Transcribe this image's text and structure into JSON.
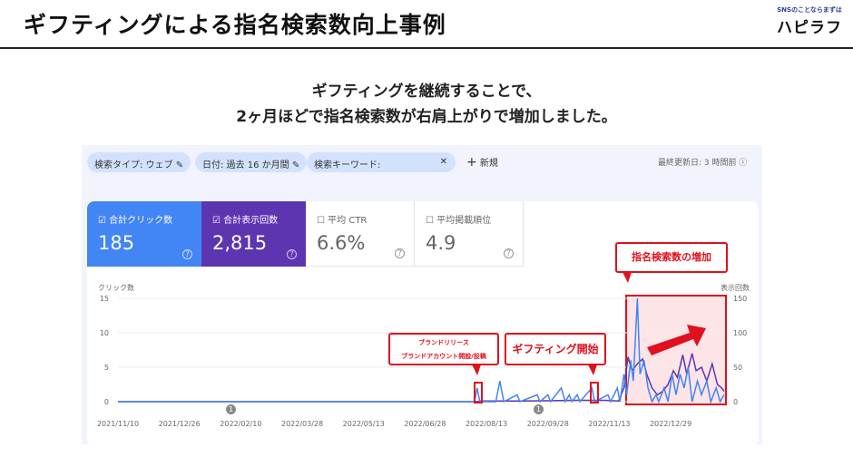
{
  "header": {
    "title": "ギフティングによる指名検索数向上事例",
    "logo_tagline": "SNSのことならまずは",
    "logo_name": "ハピラフ"
  },
  "subtitle": {
    "line1": "ギフティングを継続することで、",
    "line2": "2ヶ月ほどで指名検索数が右肩上がりで増加しました。"
  },
  "filters": {
    "chips": [
      "検索タイプ: ウェブ",
      "日付: 過去 16 か月間",
      "検索キーワード:"
    ],
    "new_label": "新規",
    "updated": "最終更新日: 3 時間前"
  },
  "metrics": [
    {
      "label": "合計クリック数",
      "value": "185",
      "checked": true,
      "color": "#4285f4"
    },
    {
      "label": "合計表示回数",
      "value": "2,815",
      "checked": true,
      "color": "#5e35b1"
    },
    {
      "label": "平均 CTR",
      "value": "6.6%",
      "checked": false
    },
    {
      "label": "平均掲載順位",
      "value": "4.9",
      "checked": false
    }
  ],
  "annotations": {
    "brand": [
      "ブランドリリース",
      "ブランドアカウント開設/投稿"
    ],
    "gifting": "ギフティング開始",
    "increase": "指名検索数の増加",
    "markers": [
      "1",
      "1"
    ]
  },
  "chart_data": {
    "type": "line",
    "left_axis_label": "クリック数",
    "right_axis_label": "表示回数",
    "left_ticks": [
      "15",
      "10",
      "5",
      "0"
    ],
    "right_ticks": [
      "150",
      "100",
      "50",
      "0"
    ],
    "ylim_left": [
      0,
      15
    ],
    "ylim_right": [
      0,
      150
    ],
    "x_ticks": [
      "2021/11/10",
      "2021/12/26",
      "2022/02/10",
      "2022/03/28",
      "2022/05/13",
      "2022/06/28",
      "2022/08/13",
      "2022/09/28",
      "2022/11/13",
      "2022/12/29"
    ],
    "xlim": [
      "2021/11/10",
      "2023/02/07"
    ],
    "grid": true,
    "series": [
      {
        "name": "合計クリック数",
        "axis": "left",
        "color": "#4285f4",
        "points": [
          [
            "2021/11/10",
            0
          ],
          [
            "2022/08/04",
            0
          ],
          [
            "2022/08/06",
            2
          ],
          [
            "2022/08/08",
            0
          ],
          [
            "2022/08/20",
            0
          ],
          [
            "2022/08/23",
            3
          ],
          [
            "2022/08/26",
            0
          ],
          [
            "2022/09/05",
            1
          ],
          [
            "2022/09/07",
            0
          ],
          [
            "2022/09/20",
            1
          ],
          [
            "2022/09/22",
            0
          ],
          [
            "2022/09/28",
            1
          ],
          [
            "2022/09/30",
            0
          ],
          [
            "2022/10/08",
            2
          ],
          [
            "2022/10/11",
            0
          ],
          [
            "2022/10/14",
            1
          ],
          [
            "2022/10/16",
            0
          ],
          [
            "2022/10/20",
            1
          ],
          [
            "2022/10/22",
            0
          ],
          [
            "2022/10/31",
            2
          ],
          [
            "2022/11/02",
            0
          ],
          [
            "2022/11/12",
            1
          ],
          [
            "2022/11/14",
            0
          ],
          [
            "2022/11/19",
            2
          ],
          [
            "2022/11/21",
            0
          ],
          [
            "2022/11/24",
            4
          ],
          [
            "2022/11/26",
            1
          ],
          [
            "2022/11/29",
            6
          ],
          [
            "2022/12/01",
            3
          ],
          [
            "2022/12/04",
            15
          ],
          [
            "2022/12/06",
            4
          ],
          [
            "2022/12/09",
            6
          ],
          [
            "2022/12/12",
            2
          ],
          [
            "2022/12/15",
            0
          ],
          [
            "2022/12/18",
            1
          ],
          [
            "2022/12/20",
            0
          ],
          [
            "2022/12/24",
            2
          ],
          [
            "2022/12/27",
            0
          ],
          [
            "2022/12/30",
            4
          ],
          [
            "2023/01/02",
            1
          ],
          [
            "2023/01/05",
            4
          ],
          [
            "2023/01/08",
            2
          ],
          [
            "2023/01/11",
            5
          ],
          [
            "2023/01/14",
            0
          ],
          [
            "2023/01/18",
            3
          ],
          [
            "2023/01/21",
            1
          ],
          [
            "2023/01/25",
            3
          ],
          [
            "2023/01/28",
            0
          ],
          [
            "2023/02/01",
            2
          ],
          [
            "2023/02/04",
            0
          ],
          [
            "2023/02/07",
            1
          ]
        ]
      },
      {
        "name": "合計表示回数",
        "axis": "right",
        "color": "#5e35b1",
        "points": [
          [
            "2021/11/10",
            0
          ],
          [
            "2022/08/06",
            0
          ],
          [
            "2022/08/08",
            1
          ],
          [
            "2022/09/10",
            1
          ],
          [
            "2022/10/20",
            2
          ],
          [
            "2022/11/10",
            2
          ],
          [
            "2022/11/20",
            1
          ],
          [
            "2022/11/24",
            20
          ],
          [
            "2022/11/27",
            65
          ],
          [
            "2022/11/30",
            45
          ],
          [
            "2022/12/04",
            55
          ],
          [
            "2022/12/08",
            62
          ],
          [
            "2022/12/11",
            40
          ],
          [
            "2022/12/15",
            20
          ],
          [
            "2022/12/19",
            10
          ],
          [
            "2022/12/23",
            15
          ],
          [
            "2022/12/27",
            25
          ],
          [
            "2022/12/31",
            45
          ],
          [
            "2023/01/03",
            35
          ],
          [
            "2023/01/07",
            68
          ],
          [
            "2023/01/10",
            40
          ],
          [
            "2023/01/14",
            70
          ],
          [
            "2023/01/17",
            45
          ],
          [
            "2023/01/21",
            50
          ],
          [
            "2023/01/25",
            30
          ],
          [
            "2023/01/29",
            55
          ],
          [
            "2023/02/02",
            25
          ],
          [
            "2023/02/05",
            20
          ],
          [
            "2023/02/07",
            15
          ]
        ]
      }
    ]
  }
}
